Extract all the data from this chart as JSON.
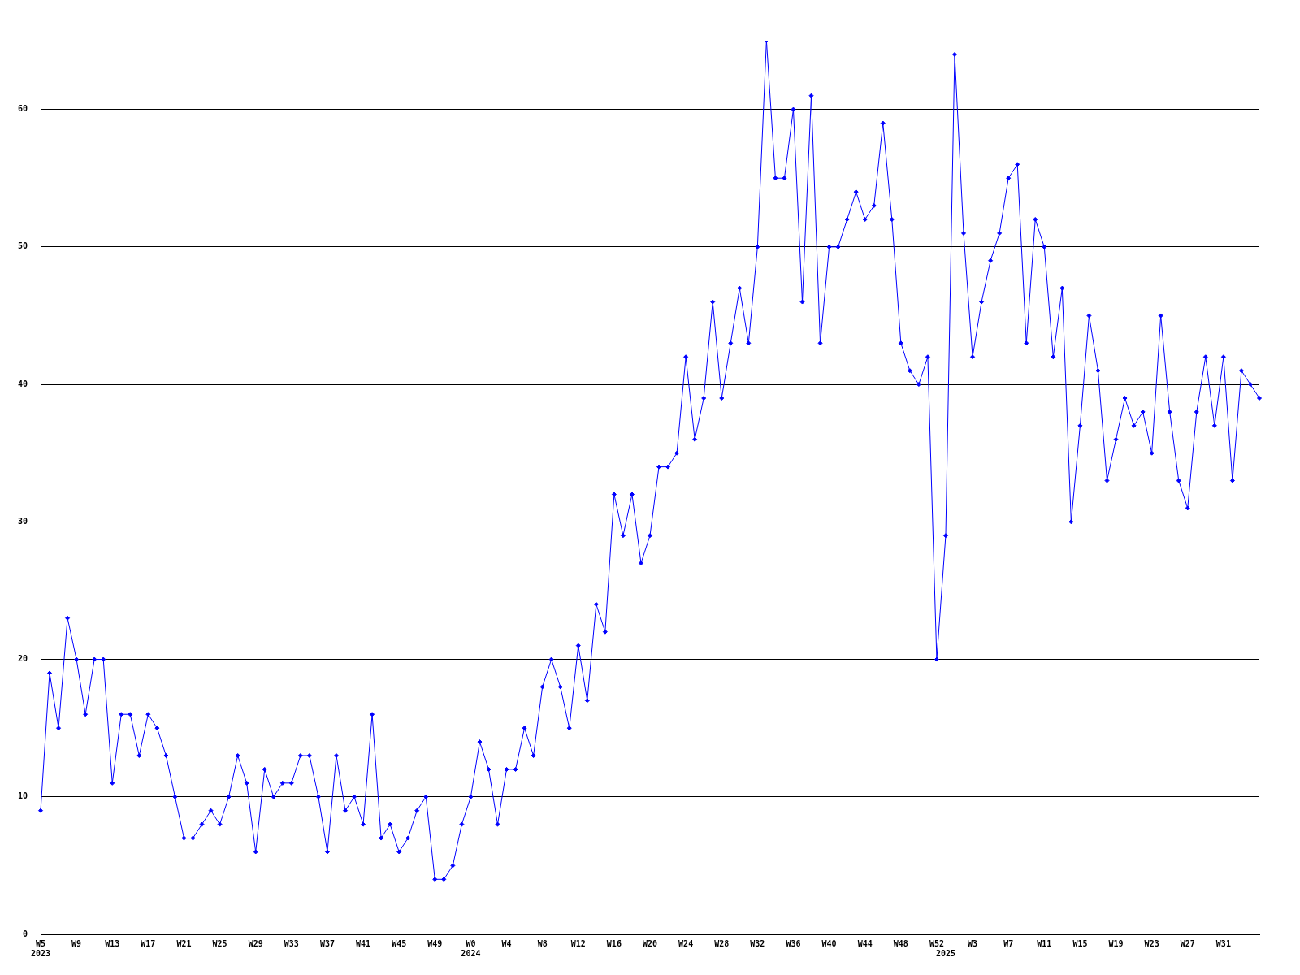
{
  "chart_data": {
    "type": "line",
    "categories": [
      "W5\n2023",
      null,
      null,
      null,
      "W9",
      null,
      null,
      null,
      "W13",
      null,
      null,
      null,
      "W17",
      null,
      null,
      null,
      "W21",
      null,
      null,
      null,
      "W25",
      null,
      null,
      null,
      "W29",
      null,
      null,
      null,
      "W33",
      null,
      null,
      null,
      "W37",
      null,
      null,
      null,
      "W41",
      null,
      null,
      null,
      "W45",
      null,
      null,
      null,
      "W49",
      null,
      null,
      null,
      "W0\n2024",
      null,
      null,
      null,
      "W4",
      null,
      null,
      null,
      "W8",
      null,
      null,
      null,
      "W12",
      null,
      null,
      null,
      "W16",
      null,
      null,
      null,
      "W20",
      null,
      null,
      null,
      "W24",
      null,
      null,
      null,
      "W28",
      null,
      null,
      null,
      "W32",
      null,
      null,
      null,
      "W36",
      null,
      null,
      null,
      "W40",
      null,
      null,
      null,
      "W44",
      null,
      null,
      null,
      "W48",
      null,
      null,
      null,
      "W52",
      "\n2025",
      null,
      null,
      "W3",
      null,
      null,
      null,
      "W7",
      null,
      null,
      null,
      "W11",
      null,
      null,
      null,
      "W15",
      null,
      null,
      null,
      "W19",
      null,
      null,
      null,
      "W23",
      null,
      null,
      null,
      "W27",
      null,
      null,
      null,
      "W31",
      null,
      null,
      null,
      null
    ],
    "series": [
      {
        "color": "#0000ff",
        "values": [
          9,
          19,
          15,
          23,
          20,
          16,
          20,
          20,
          11,
          16,
          16,
          13,
          16,
          15,
          13,
          10,
          7,
          7,
          8,
          9,
          8,
          10,
          13,
          11,
          6,
          12,
          10,
          11,
          11,
          13,
          13,
          10,
          6,
          13,
          9,
          10,
          8,
          16,
          7,
          8,
          6,
          7,
          9,
          10,
          4,
          4,
          5,
          8,
          10,
          14,
          12,
          8,
          12,
          12,
          15,
          13,
          18,
          20,
          18,
          15,
          21,
          17,
          24,
          22,
          32,
          29,
          32,
          27,
          29,
          34,
          34,
          35,
          42,
          36,
          39,
          46,
          39,
          43,
          47,
          43,
          50,
          65,
          55,
          55,
          60,
          46,
          61,
          43,
          50,
          50,
          52,
          54,
          52,
          53,
          59,
          52,
          43,
          41,
          40,
          42,
          20,
          29,
          64,
          51,
          42,
          46,
          49,
          51,
          55,
          56,
          43,
          52,
          50,
          42,
          47,
          30,
          37,
          45,
          41,
          33,
          36,
          39,
          37,
          38,
          35,
          45,
          38,
          33,
          31,
          38,
          42,
          37,
          42,
          33,
          41,
          40,
          39
        ]
      }
    ],
    "ylim": [
      0,
      65
    ],
    "yticks": [
      0,
      10,
      20,
      30,
      40,
      50,
      60
    ],
    "grid": "y",
    "legend": false,
    "marker": "diamond"
  }
}
